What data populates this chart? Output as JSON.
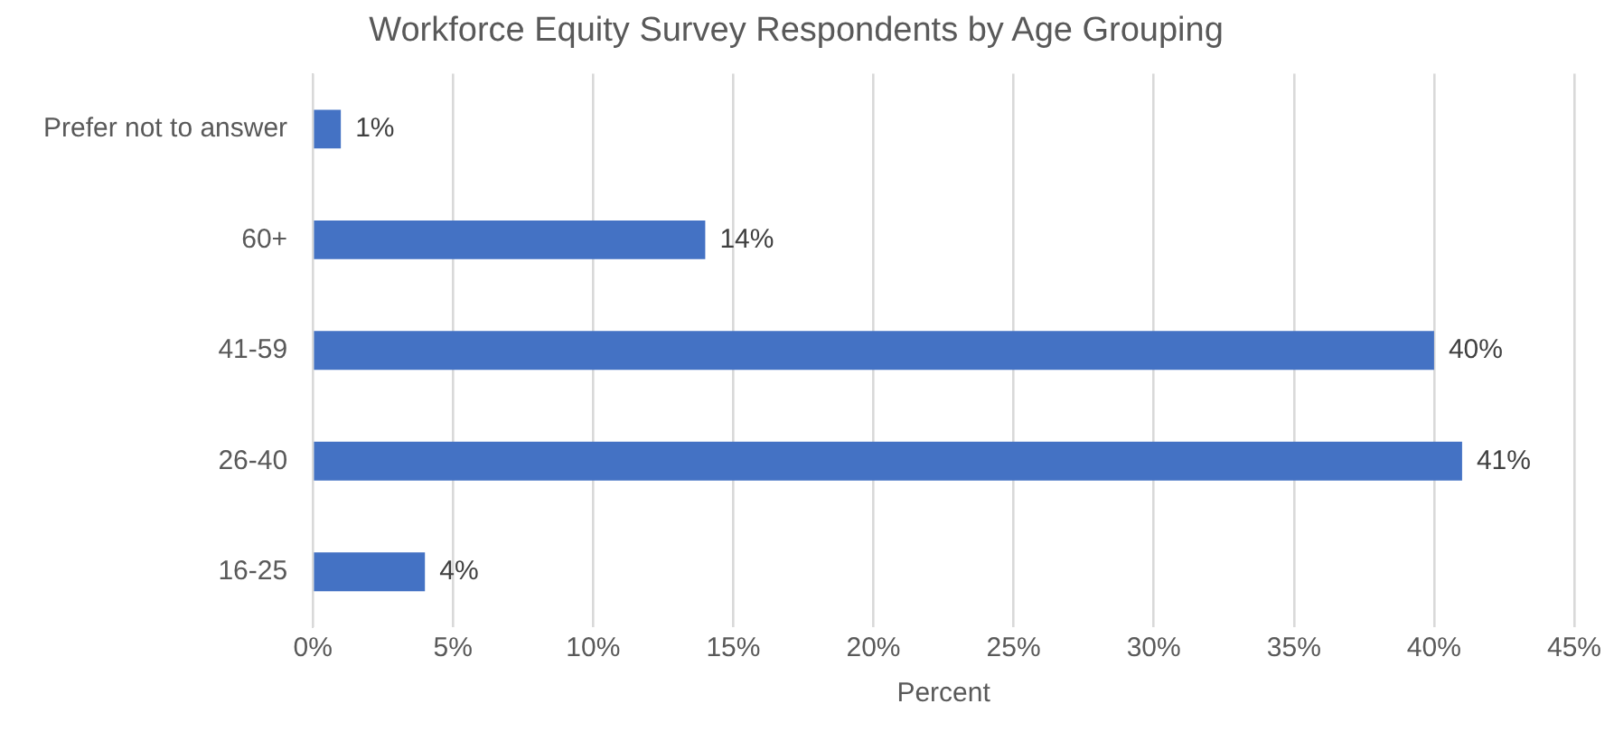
{
  "chart_data": {
    "type": "bar",
    "orientation": "horizontal",
    "title": "Workforce Equity Survey Respondents by Age Grouping",
    "xlabel": "Percent",
    "categories": [
      "Prefer not to answer",
      "60+",
      "41-59",
      "26-40",
      "16-25"
    ],
    "values": [
      1,
      14,
      40,
      41,
      4
    ],
    "color": "#4472c4",
    "value_labels": [
      "1%",
      "14%",
      "40%",
      "41%",
      "4%"
    ],
    "xlim": [
      0,
      45
    ],
    "xticks": [
      {
        "value": 0,
        "label": "0%"
      },
      {
        "value": 5,
        "label": "5%"
      },
      {
        "value": 10,
        "label": "10%"
      },
      {
        "value": 15,
        "label": "15%"
      },
      {
        "value": 20,
        "label": "20%"
      },
      {
        "value": 25,
        "label": "25%"
      },
      {
        "value": 30,
        "label": "30%"
      },
      {
        "value": 35,
        "label": "35%"
      },
      {
        "value": 40,
        "label": "40%"
      },
      {
        "value": 45,
        "label": "45%"
      }
    ],
    "grid": "x",
    "legend": false
  }
}
